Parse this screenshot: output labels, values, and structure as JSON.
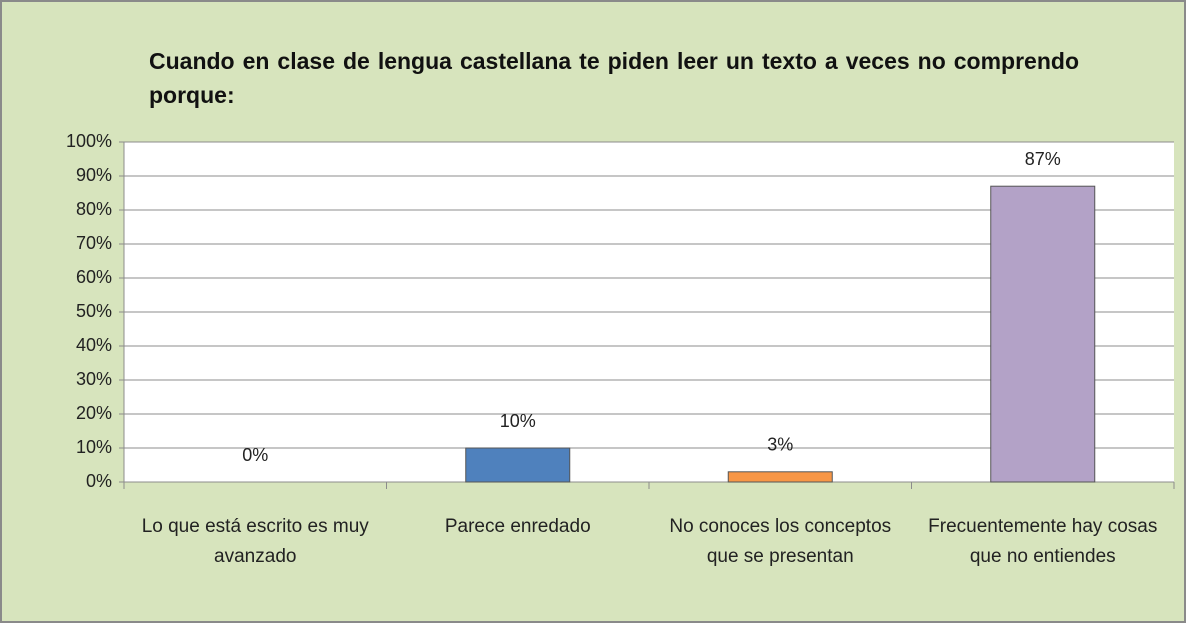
{
  "chart_data": {
    "type": "bar",
    "title": "Cuando en clase de lengua castellana te piden leer un texto a veces no comprendo porque:",
    "categories": [
      "Lo que está escrito es muy avanzado",
      "Parece enredado",
      "No conoces los conceptos que se presentan",
      "Frecuentemente hay cosas que no entiendes"
    ],
    "values": [
      0,
      10,
      3,
      87
    ],
    "value_labels": [
      "0%",
      "10%",
      "3%",
      "87%"
    ],
    "colors": [
      "#4f81bd",
      "#4f81bd",
      "#f79646",
      "#b3a2c7"
    ],
    "ylim": [
      0,
      100
    ],
    "yticks": [
      {
        "value": 0,
        "label": "0%"
      },
      {
        "value": 10,
        "label": "10%"
      },
      {
        "value": 20,
        "label": "20%"
      },
      {
        "value": 30,
        "label": "30%"
      },
      {
        "value": 40,
        "label": "40%"
      },
      {
        "value": 50,
        "label": "50%"
      },
      {
        "value": 60,
        "label": "60%"
      },
      {
        "value": 70,
        "label": "70%"
      },
      {
        "value": 80,
        "label": "80%"
      },
      {
        "value": 90,
        "label": "90%"
      },
      {
        "value": 100,
        "label": "100%"
      }
    ],
    "grid": true
  }
}
